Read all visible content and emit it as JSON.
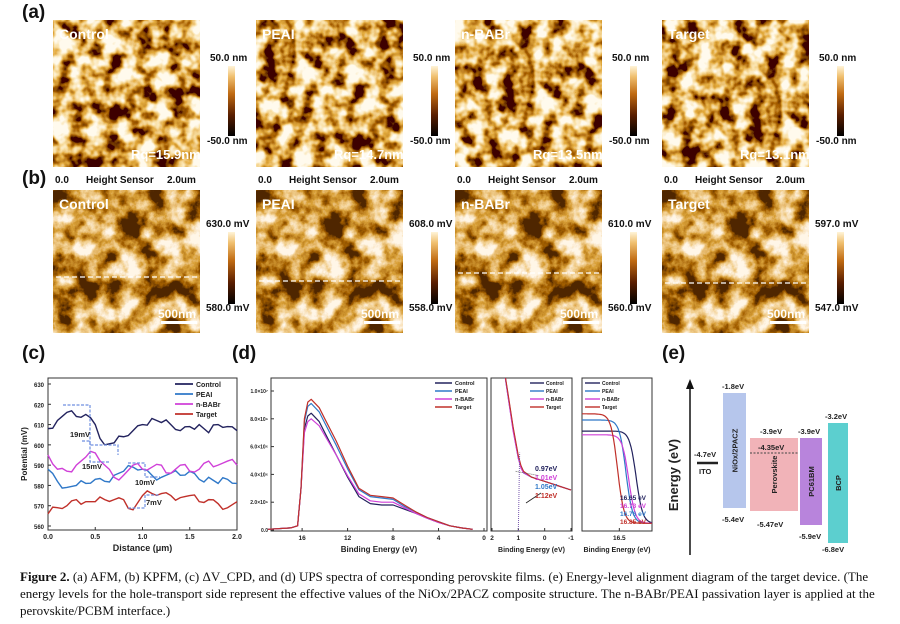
{
  "panel_labels": {
    "a": "(a)",
    "b": "(b)",
    "c": "(c)",
    "d": "(d)",
    "e": "(e)"
  },
  "colormap": [
    "#000000",
    "#5a1e00",
    "#bf6a12",
    "#f0c070",
    "#fff4d8"
  ],
  "afm": {
    "samples": [
      {
        "name": "Control",
        "rq": "Rq=15.9nm",
        "cb_top": "50.0 nm",
        "cb_bottom": "-50.0 nm"
      },
      {
        "name": "PEAI",
        "rq": "Rq=14.7nm",
        "cb_top": "50.0 nm",
        "cb_bottom": "-50.0 nm"
      },
      {
        "name": "n-BABr",
        "rq": "Rq=13.5nm",
        "cb_top": "50.0 nm",
        "cb_bottom": "-50.0 nm"
      },
      {
        "name": "Target",
        "rq": "Rq=13.1nm",
        "cb_top": "50.0 nm",
        "cb_bottom": "-50.0 nm"
      }
    ],
    "axis_start": "0.0",
    "axis_label": "Height Sensor",
    "axis_end": "2.0um"
  },
  "kpfm": {
    "samples": [
      {
        "name": "Control",
        "cb_top": "630.0 mV",
        "cb_bottom": "580.0 mV",
        "scale_bar": "500nm"
      },
      {
        "name": "PEAI",
        "cb_top": "608.0 mV",
        "cb_bottom": "558.0 mV",
        "scale_bar": "500nm"
      },
      {
        "name": "n-BABr",
        "cb_top": "610.0 mV",
        "cb_bottom": "560.0 mV",
        "scale_bar": "500nm"
      },
      {
        "name": "Target",
        "cb_top": "597.0 mV",
        "cb_bottom": "547.0 mV",
        "scale_bar": "500nm"
      }
    ]
  },
  "chart_data": [
    {
      "panel": "c",
      "type": "line",
      "xlabel": "Distance (μm)",
      "ylabel": "Potential (mV)",
      "xlim": [
        0,
        2.0
      ],
      "ylim": [
        560,
        630
      ],
      "xticks": [
        "0.0",
        "0.5",
        "1.0",
        "1.5",
        "2.0"
      ],
      "yticks": [
        "560",
        "570",
        "580",
        "590",
        "600",
        "610",
        "620",
        "630"
      ],
      "legend_position": "top-right",
      "x": [
        0,
        0.1,
        0.2,
        0.3,
        0.4,
        0.5,
        0.6,
        0.7,
        0.8,
        0.9,
        1.0,
        1.1,
        1.2,
        1.3,
        1.4,
        1.5,
        1.6,
        1.7,
        1.8,
        1.9,
        2.0
      ],
      "series": [
        {
          "name": "Control",
          "color": "#23235e",
          "values": [
            608,
            612,
            616,
            614,
            615,
            610,
            600,
            601,
            604,
            607,
            610,
            613,
            611,
            610,
            607,
            609,
            610,
            606,
            610,
            609,
            607
          ]
        },
        {
          "name": "PEAI",
          "color": "#2f78c8",
          "values": [
            588,
            582,
            579,
            580,
            581,
            583,
            582,
            585,
            587,
            589,
            588,
            585,
            584,
            586,
            585,
            587,
            583,
            584,
            581,
            583,
            581
          ]
        },
        {
          "name": "n-BABr",
          "color": "#d040d8",
          "values": [
            595,
            588,
            587,
            590,
            594,
            596,
            590,
            584,
            585,
            590,
            588,
            589,
            590,
            586,
            590,
            587,
            588,
            592,
            590,
            592,
            590
          ]
        },
        {
          "name": "Target",
          "color": "#c0302a",
          "values": [
            566,
            569,
            570,
            573,
            572,
            572,
            573,
            573,
            573,
            568,
            575,
            576,
            576,
            575,
            574,
            575,
            572,
            573,
            571,
            569,
            572
          ]
        }
      ],
      "annotations": [
        "19mV",
        "15mV",
        "10mV",
        "7mV"
      ]
    },
    {
      "panel": "d-1",
      "type": "line",
      "xlabel": "Binding Energy (eV)",
      "ylabel": "",
      "xlim": [
        19,
        0
      ],
      "ylim": [
        0,
        10000000
      ],
      "xticks": [
        "16",
        "12",
        "8",
        "4",
        "0"
      ],
      "yticks": [
        "0.0",
        "2.0×10⁶",
        "4.0×10⁶",
        "6.0×10⁶",
        "8.0×10⁶",
        "1.0×10⁷"
      ],
      "y_unit": "×10⁶",
      "legend_position": "top-right",
      "x": [
        19,
        17,
        16.4,
        16.1,
        15.8,
        15.5,
        15.2,
        14.5,
        14,
        13,
        12,
        11,
        10,
        9,
        8,
        7,
        6,
        5,
        4,
        3,
        2,
        1
      ],
      "series": [
        {
          "name": "Control",
          "color": "#23235e",
          "values": [
            0.05,
            0.15,
            0.3,
            3,
            7.3,
            8.2,
            8.4,
            7.8,
            7.0,
            5.4,
            3.8,
            2.4,
            1.9,
            1.8,
            1.8,
            1.5,
            1.2,
            0.85,
            0.55,
            0.3,
            0.15,
            0.05
          ]
        },
        {
          "name": "PEAI",
          "color": "#2f78c8",
          "values": [
            0.05,
            0.15,
            0.3,
            3,
            7.8,
            8.9,
            9.1,
            8.5,
            7.7,
            6.1,
            4.4,
            2.9,
            2.4,
            2.3,
            2.2,
            1.7,
            1.3,
            0.9,
            0.6,
            0.3,
            0.15,
            0.05
          ]
        },
        {
          "name": "n-BABr",
          "color": "#d040d8",
          "values": [
            0.05,
            0.15,
            0.3,
            3,
            7.0,
            7.8,
            8.0,
            7.5,
            6.8,
            5.4,
            3.9,
            2.6,
            2.1,
            2.0,
            2.0,
            1.6,
            1.2,
            0.85,
            0.55,
            0.3,
            0.15,
            0.05
          ]
        },
        {
          "name": "Target",
          "color": "#c0302a",
          "values": [
            0.05,
            0.15,
            0.3,
            3,
            8.0,
            9.2,
            9.4,
            8.8,
            8.0,
            6.4,
            4.6,
            3.0,
            2.5,
            2.4,
            2.3,
            1.8,
            1.3,
            0.9,
            0.6,
            0.3,
            0.15,
            0.05
          ]
        }
      ]
    },
    {
      "panel": "d-2",
      "type": "line",
      "xlabel": "Binding Energy (eV)",
      "xlim": [
        2,
        -1
      ],
      "ylim": [
        0,
        10
      ],
      "xticks": [
        "2",
        "1",
        "0",
        "-1"
      ],
      "legend_position": "top-right",
      "x": [
        1.6,
        1.4,
        1.2,
        1.0,
        0.9,
        0.8,
        0.5,
        0,
        -0.5,
        -1
      ],
      "series": [
        {
          "name": "Control",
          "color": "#23235e",
          "values": [
            10,
            7.6,
            5.2,
            3.2,
            2.5,
            2.1,
            1.8,
            1.5,
            1.2,
            0.9
          ]
        },
        {
          "name": "PEAI",
          "color": "#2f78c8",
          "values": [
            10,
            7.5,
            5.1,
            3.1,
            2.5,
            2.1,
            1.8,
            1.5,
            1.2,
            0.9
          ]
        },
        {
          "name": "n-BABr",
          "color": "#d040d8",
          "values": [
            10,
            7.5,
            5.0,
            3.1,
            2.4,
            2.1,
            1.8,
            1.5,
            1.2,
            0.9
          ]
        },
        {
          "name": "Target",
          "color": "#c0302a",
          "values": [
            10,
            7.7,
            5.3,
            3.3,
            2.6,
            2.2,
            1.8,
            1.5,
            1.2,
            0.9
          ]
        }
      ],
      "annotations": [
        {
          "text": "0.97eV",
          "color": "#23235e"
        },
        {
          "text": "1.01eV",
          "color": "#d040d8"
        },
        {
          "text": "1.05eV",
          "color": "#2f78c8"
        },
        {
          "text": "1.12eV",
          "color": "#c0302a"
        }
      ]
    },
    {
      "panel": "d-3",
      "type": "line",
      "xlabel": "Binding Energy (eV)",
      "xlim": [
        16.9,
        16.15
      ],
      "ylim": [
        0,
        10
      ],
      "xticks": [
        "16.5"
      ],
      "legend_position": "top-left",
      "series": [
        {
          "name": "Control",
          "color": "#23235e",
          "cutoff": 16.65,
          "plateau": 7.5
        },
        {
          "name": "PEAI",
          "color": "#2f78c8",
          "cutoff": 16.76,
          "plateau": 8.4
        },
        {
          "name": "n-BABr",
          "color": "#d040d8",
          "cutoff": 16.73,
          "plateau": 7.2
        },
        {
          "name": "Target",
          "color": "#c0302a",
          "cutoff": 16.85,
          "plateau": 8.9
        }
      ],
      "annotations": [
        {
          "text": "16.65 eV",
          "color": "#23235e"
        },
        {
          "text": "16.73 eV",
          "color": "#d040d8"
        },
        {
          "text": "16.76 eV",
          "color": "#2f78c8"
        },
        {
          "text": "16.85 eV",
          "color": "#c0302a"
        }
      ]
    }
  ],
  "energy_diagram": {
    "ylabel": "Energy (eV)",
    "ito": {
      "label": "ITO",
      "level": "-4.7eV"
    },
    "layers": [
      {
        "name": "NiOx/2PACZ",
        "top": "-1.8eV",
        "bottom": "-5.4eV",
        "color": "#b6c6ec"
      },
      {
        "name": "Perovskite",
        "top": "-3.9eV",
        "bottom": "-5.47eV",
        "mid": "-4.35eV",
        "color": "#f1b3b8"
      },
      {
        "name": "PC61BM",
        "top": "-3.9eV",
        "bottom": "-5.9eV",
        "color": "#b884dc"
      },
      {
        "name": "BCP",
        "top": "-3.2eV",
        "bottom": "-6.8eV",
        "color": "#5ccfcf"
      }
    ]
  },
  "caption": {
    "figure_label": "Figure 2.",
    "text": " (a) AFM, (b) KPFM, (c) ΔV_CPD, and (d) UPS spectra of corresponding perovskite films. (e) Energy-level alignment diagram of the target device. (The energy levels for the hole-transport side represent the effective values of the NiOx/2PACZ composite structure. The n-BABr/PEAI passivation layer is applied at the perovskite/PCBM interface.)"
  }
}
